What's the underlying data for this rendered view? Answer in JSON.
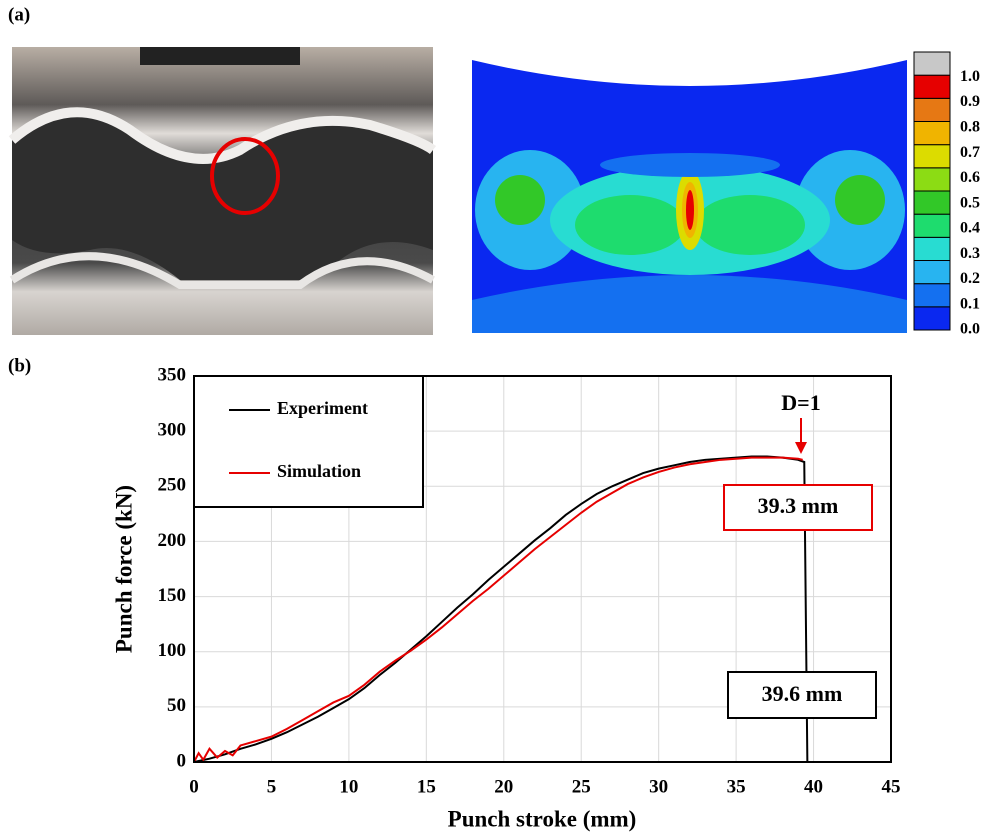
{
  "figure": {
    "panel_a": "(a)",
    "panel_b": "(b)",
    "colorbar": {
      "lim": [
        0,
        1.1
      ],
      "colors": [
        "#0a28f0",
        "#1470f0",
        "#28b4f0",
        "#28dcd2",
        "#1edc6e",
        "#32c828",
        "#8cdc14",
        "#dcdc00",
        "#f0b400",
        "#e67814",
        "#e60000",
        "#c8c8c8"
      ],
      "ticks": [
        {
          "value": 0,
          "label": "0.0"
        },
        {
          "value": 0.1,
          "label": "0.1"
        },
        {
          "value": 0.2,
          "label": "0.2"
        },
        {
          "value": 0.3,
          "label": "0.3"
        },
        {
          "value": 0.4,
          "label": "0.4"
        },
        {
          "value": 0.5,
          "label": "0.5"
        },
        {
          "value": 0.6,
          "label": "0.6"
        },
        {
          "value": 0.7,
          "label": "0.7"
        },
        {
          "value": 0.8,
          "label": "0.8"
        },
        {
          "value": 0.9,
          "label": "0.9"
        },
        {
          "value": 1,
          "label": "1.0"
        }
      ]
    }
  },
  "chart_data": {
    "type": "line",
    "xlabel": "Punch stroke (mm)",
    "ylabel": "Punch force (kN)",
    "xlim": [
      0,
      45
    ],
    "ylim": [
      0,
      350
    ],
    "xticks": [
      0,
      5,
      10,
      15,
      20,
      25,
      30,
      35,
      40,
      45
    ],
    "yticks": [
      0,
      50,
      100,
      150,
      200,
      250,
      300,
      350
    ],
    "grid": true,
    "legend": "upper left",
    "series": [
      {
        "name": "Experiment",
        "color": "#000000",
        "x": [
          0,
          1,
          2,
          3,
          4,
          5,
          6,
          7,
          8,
          9,
          10,
          11,
          12,
          13,
          14,
          15,
          16,
          17,
          18,
          19,
          20,
          21,
          22,
          23,
          24,
          25,
          26,
          27,
          28,
          29,
          30,
          31,
          32,
          33,
          34,
          35,
          36,
          37,
          38,
          39,
          39.4,
          39.6
        ],
        "values": [
          0,
          3,
          7,
          12,
          16,
          21,
          27,
          34,
          41,
          49,
          57,
          67,
          79,
          90,
          102,
          114,
          127,
          140,
          152,
          165,
          177,
          189,
          201,
          212,
          224,
          234,
          243,
          250,
          256,
          262,
          266,
          269,
          272,
          274,
          275,
          276,
          277,
          277,
          276,
          274,
          272,
          0
        ]
      },
      {
        "name": "Simulation",
        "color": "#e60000",
        "x": [
          0,
          0.3,
          0.6,
          1,
          1.5,
          2,
          2.5,
          3,
          4,
          5,
          6,
          7,
          8,
          9,
          10,
          11,
          12,
          13,
          14,
          15,
          16,
          17,
          18,
          19,
          20,
          21,
          22,
          23,
          24,
          25,
          26,
          27,
          28,
          29,
          30,
          31,
          32,
          33,
          34,
          35,
          36,
          37,
          38,
          39,
          39.3
        ],
        "values": [
          0,
          8,
          2,
          12,
          4,
          10,
          6,
          15,
          19,
          23,
          30,
          38,
          46,
          54,
          60,
          70,
          82,
          92,
          101,
          111,
          122,
          134,
          146,
          157,
          169,
          181,
          193,
          204,
          215,
          226,
          236,
          244,
          252,
          258,
          263,
          267,
          270,
          272,
          274,
          275,
          276,
          276,
          276,
          275,
          274
        ]
      }
    ],
    "annotations": [
      {
        "text": "D=1"
      },
      {
        "text": "39.3 mm"
      },
      {
        "text": "39.6 mm"
      }
    ]
  }
}
